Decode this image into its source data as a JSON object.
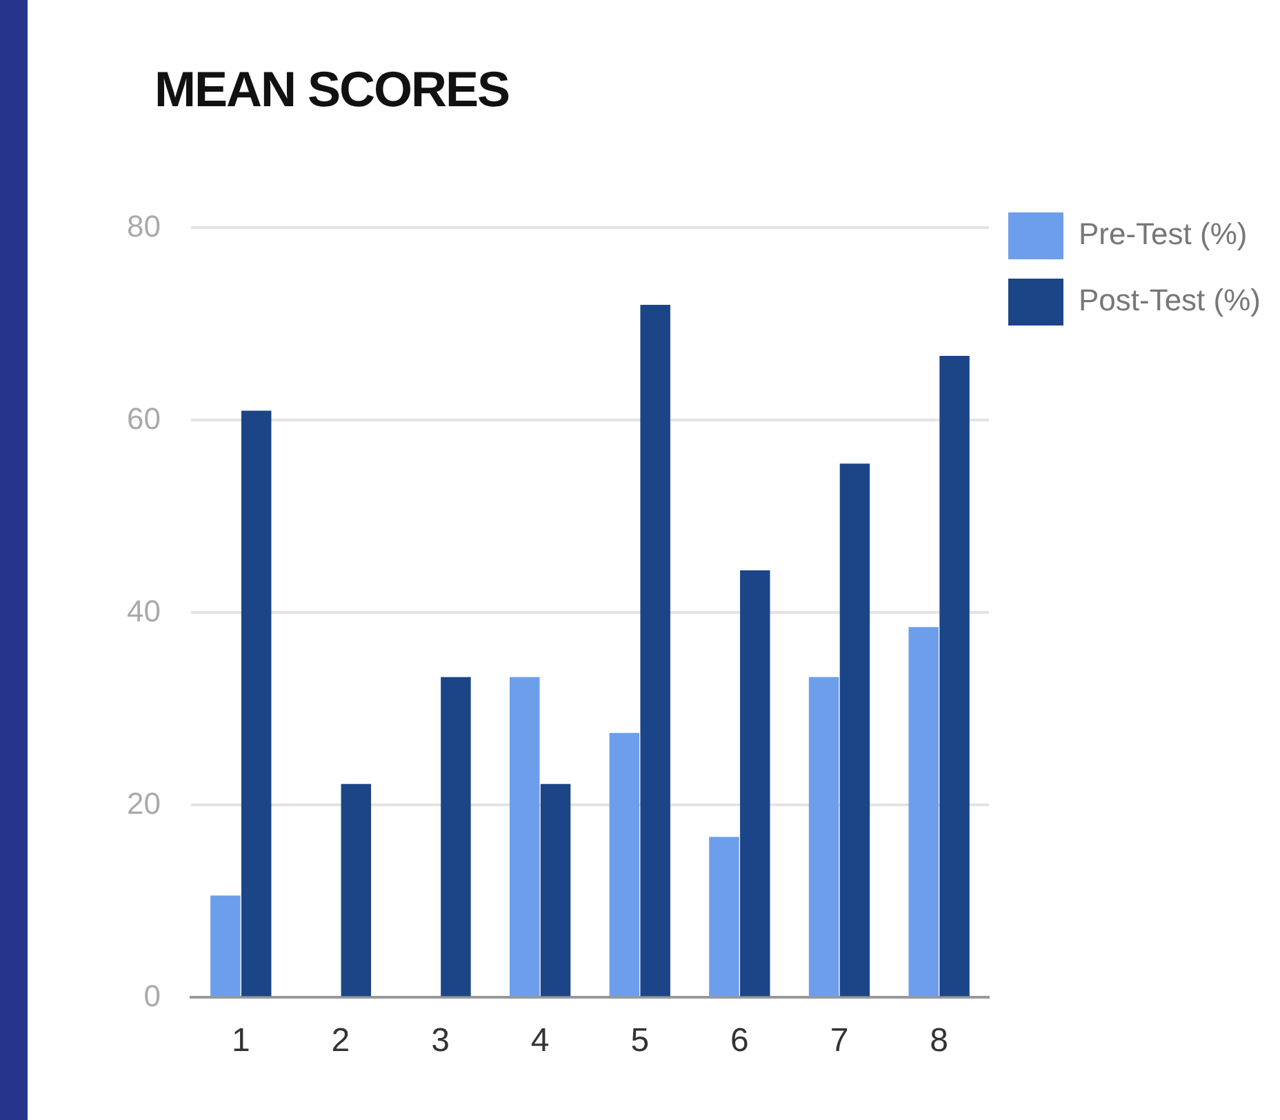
{
  "chart_data": {
    "type": "bar",
    "title": "MEAN SCORES",
    "categories": [
      "1",
      "2",
      "3",
      "4",
      "5",
      "6",
      "7",
      "8"
    ],
    "series": [
      {
        "name": "Pre-Test (%)",
        "color": "#6d9eeb",
        "values": [
          10.6,
          0,
          0,
          33.3,
          27.5,
          16.7,
          33.3,
          38.5
        ]
      },
      {
        "name": "Post-Test (%)",
        "color": "#1c4587",
        "values": [
          61,
          22.2,
          33.3,
          22.2,
          72,
          44.4,
          55.5,
          66.7
        ]
      }
    ],
    "ylim": [
      0,
      80
    ],
    "yticks": [
      0,
      20,
      40,
      60,
      80
    ],
    "grid": "y",
    "legend": "top right"
  }
}
